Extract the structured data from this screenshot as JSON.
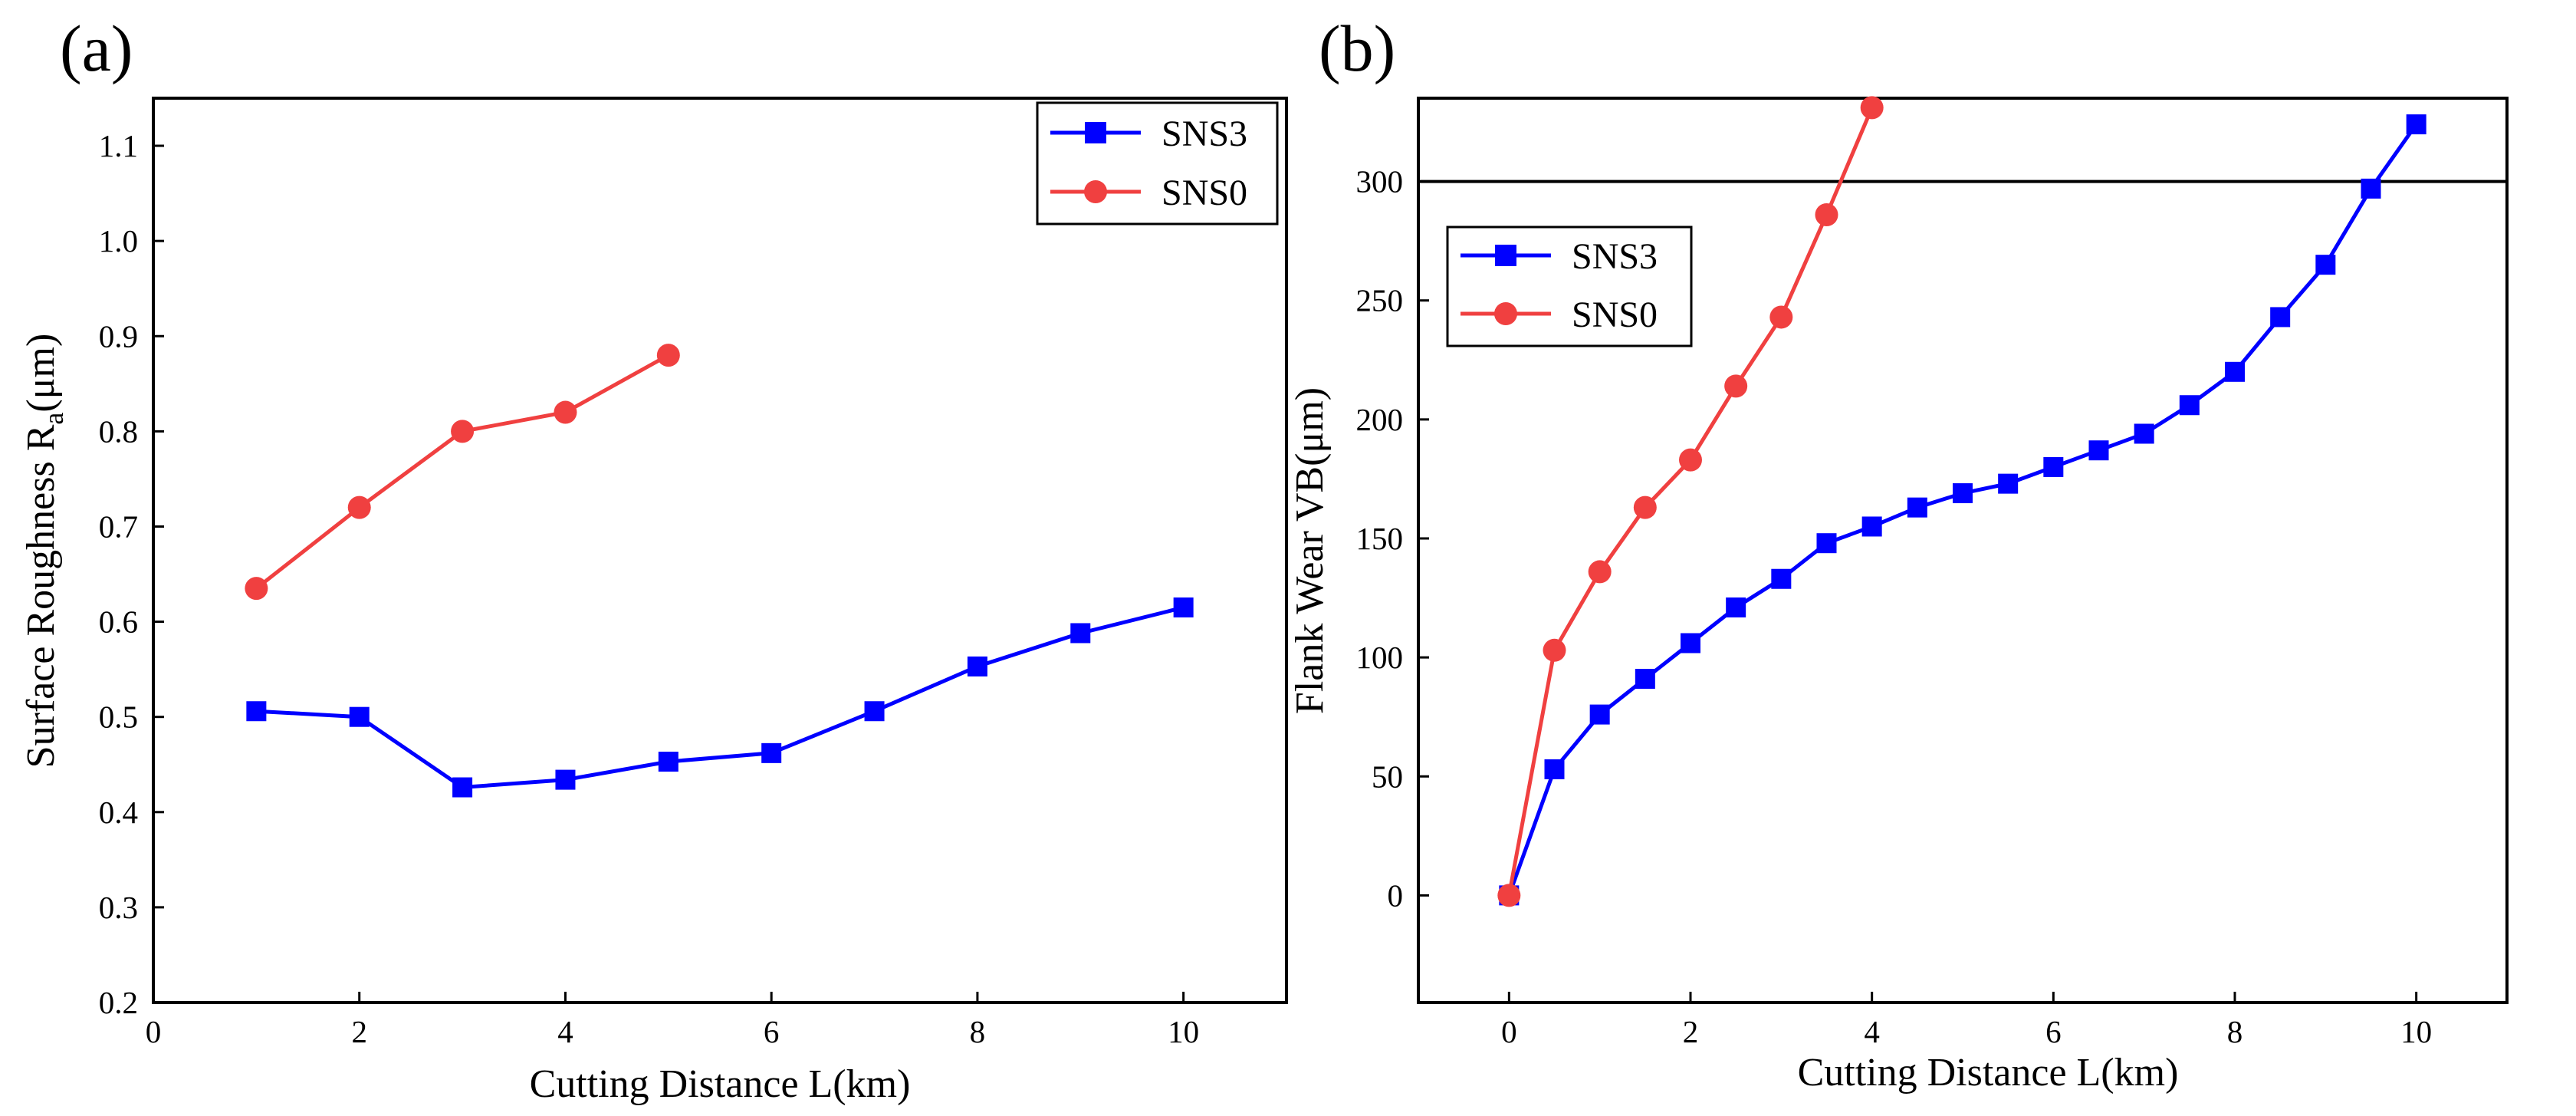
{
  "chart_data": [
    {
      "panel_label": "(a)",
      "type": "line",
      "title": "",
      "xlabel": "Cutting Distance L(km)",
      "ylabel": {
        "main": "Surface Roughness R",
        "sub": "a",
        "unit": "(μm)"
      },
      "xlim": [
        0,
        11
      ],
      "ylim": [
        0.2,
        1.15
      ],
      "xticks": [
        0,
        2,
        4,
        6,
        8,
        10
      ],
      "yticks": [
        0.2,
        0.3,
        0.4,
        0.5,
        0.6,
        0.7,
        0.8,
        0.9,
        1.0,
        1.1
      ],
      "ytick_labels": [
        "0.2",
        "0.3",
        "0.4",
        "0.5",
        "0.6",
        "0.7",
        "0.8",
        "0.9",
        "1.0",
        "1.1"
      ],
      "legend_position": "top-right",
      "series": [
        {
          "name": "SNS3",
          "color": "#0000ff",
          "marker": "square",
          "x": [
            1,
            2,
            3,
            4,
            5,
            6,
            7,
            8,
            9,
            10
          ],
          "y": [
            0.506,
            0.5,
            0.426,
            0.434,
            0.453,
            0.462,
            0.506,
            0.553,
            0.588,
            0.615
          ]
        },
        {
          "name": "SNS0",
          "color": "#f04040",
          "marker": "circle",
          "x": [
            1,
            2,
            3,
            4,
            5
          ],
          "y": [
            0.635,
            0.72,
            0.8,
            0.82,
            0.88
          ]
        }
      ]
    },
    {
      "panel_label": "(b)",
      "type": "line",
      "title": "",
      "xlabel": "Cutting Distance L(km)",
      "ylabel": {
        "main": "Flank Wear VB(μm)",
        "sub": "",
        "unit": ""
      },
      "xlim": [
        -1,
        11
      ],
      "ylim": [
        -45,
        335
      ],
      "xticks": [
        0,
        2,
        4,
        6,
        8,
        10
      ],
      "yticks": [
        0,
        50,
        100,
        150,
        200,
        250,
        300
      ],
      "ytick_labels": [
        "0",
        "50",
        "100",
        "150",
        "200",
        "250",
        "300"
      ],
      "hline": 300,
      "legend_position": "upper-left",
      "series": [
        {
          "name": "SNS3",
          "color": "#0000ff",
          "marker": "square",
          "x": [
            0,
            0.5,
            1,
            1.5,
            2,
            2.5,
            3,
            3.5,
            4,
            4.5,
            5,
            5.5,
            6,
            6.5,
            7,
            7.5,
            8,
            8.5,
            9,
            9.5,
            10
          ],
          "y": [
            0,
            53,
            76,
            91,
            106,
            121,
            133,
            148,
            155,
            163,
            169,
            173,
            180,
            187,
            194,
            206,
            220,
            243,
            265,
            297,
            324
          ]
        },
        {
          "name": "SNS0",
          "color": "#f04040",
          "marker": "circle",
          "x": [
            0,
            0.5,
            1,
            1.5,
            2,
            2.5,
            3,
            3.5,
            4
          ],
          "y": [
            0,
            103,
            136,
            163,
            183,
            214,
            243,
            286,
            331
          ]
        }
      ]
    }
  ]
}
